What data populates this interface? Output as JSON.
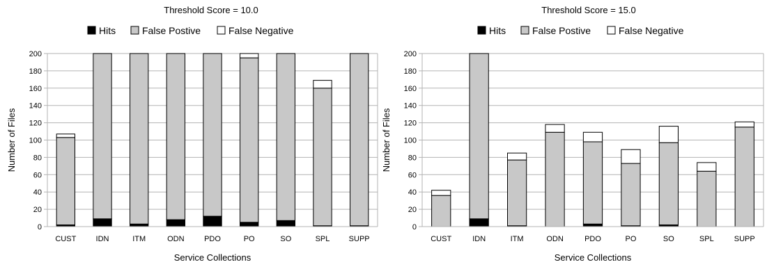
{
  "chart_data": [
    {
      "type": "bar",
      "stacked": true,
      "title": "Threshold Score = 10.0",
      "xlabel": "Service Collections",
      "ylabel": "Number of Files",
      "ylim": [
        0,
        200
      ],
      "yticks": [
        0,
        20,
        40,
        60,
        80,
        100,
        120,
        140,
        160,
        180,
        200
      ],
      "grid": true,
      "legend": "top-center",
      "categories": [
        "CUST",
        "IDN",
        "ITM",
        "ODN",
        "PDO",
        "PO",
        "SO",
        "SPL",
        "SUPP"
      ],
      "series": [
        {
          "name": "Hits",
          "color": "#000000",
          "values": [
            2,
            9,
            3,
            8,
            12,
            5,
            7,
            1,
            1
          ]
        },
        {
          "name": "False Postive",
          "color": "#c8c8c8",
          "values": [
            101,
            191,
            197,
            192,
            188,
            190,
            193,
            159,
            199
          ]
        },
        {
          "name": "False Negative",
          "color": "#ffffff",
          "values": [
            4,
            0,
            0,
            0,
            0,
            5,
            0,
            9,
            0
          ]
        }
      ]
    },
    {
      "type": "bar",
      "stacked": true,
      "title": "Threshold Score = 15.0",
      "xlabel": "Service Collections",
      "ylabel": "Number of Files",
      "ylim": [
        0,
        200
      ],
      "yticks": [
        0,
        20,
        40,
        60,
        80,
        100,
        120,
        140,
        160,
        180,
        200
      ],
      "grid": true,
      "legend": "top-center",
      "categories": [
        "CUST",
        "IDN",
        "ITM",
        "ODN",
        "PDO",
        "PO",
        "SO",
        "SPL",
        "SUPP"
      ],
      "series": [
        {
          "name": "Hits",
          "color": "#000000",
          "values": [
            0,
            9,
            1,
            0,
            3,
            1,
            2,
            0,
            0
          ]
        },
        {
          "name": "False Postive",
          "color": "#c8c8c8",
          "values": [
            36,
            191,
            76,
            109,
            95,
            72,
            95,
            64,
            115
          ]
        },
        {
          "name": "False Negative",
          "color": "#ffffff",
          "values": [
            6,
            0,
            8,
            9,
            11,
            16,
            19,
            10,
            6
          ]
        }
      ]
    }
  ]
}
